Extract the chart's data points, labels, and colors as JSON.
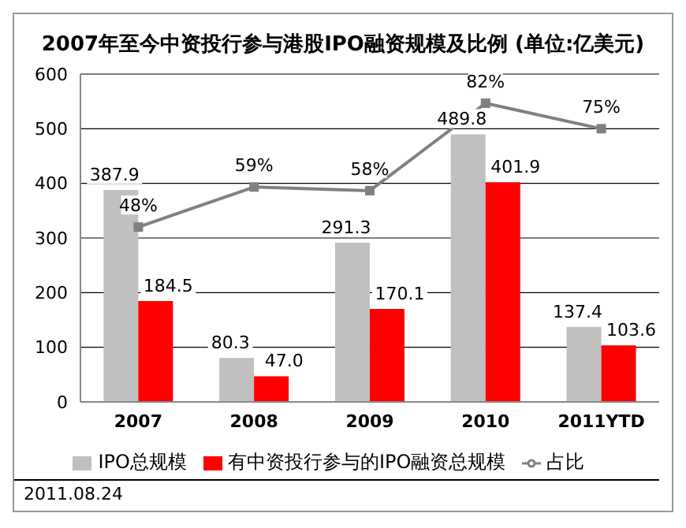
{
  "chart_data": {
    "type": "bar",
    "title": "2007年至今中资投行参与港股IPO融资规模及比例 (单位:亿美元)",
    "categories": [
      "2007",
      "2008",
      "2009",
      "2010",
      "2011YTD"
    ],
    "series": [
      {
        "name": "IPO总规模",
        "color": "#c0c0c0",
        "values": [
          387.9,
          80.3,
          291.3,
          489.8,
          137.4
        ]
      },
      {
        "name": "有中资投行参与的IPO融资总规模",
        "color": "#ff0000",
        "values": [
          184.5,
          47.0,
          170.1,
          401.9,
          103.6
        ],
        "value_labels": [
          "184.5",
          "47.0",
          "170.1",
          "401.9",
          "103.6"
        ]
      },
      {
        "name": "占比",
        "type": "line",
        "axis": "y2",
        "color": "#808080",
        "values": [
          48,
          59,
          58,
          82,
          75
        ],
        "value_labels": [
          "48%",
          "59%",
          "58%",
          "82%",
          "75%"
        ]
      }
    ],
    "ylim": [
      0,
      600
    ],
    "yticks": [
      0,
      100,
      200,
      300,
      400,
      500,
      600
    ],
    "y2lim": [
      0,
      90
    ],
    "grid": "y",
    "legend": "bottom",
    "marker": "square",
    "data_labels": true,
    "annotations": [
      "2011.08.24"
    ]
  }
}
